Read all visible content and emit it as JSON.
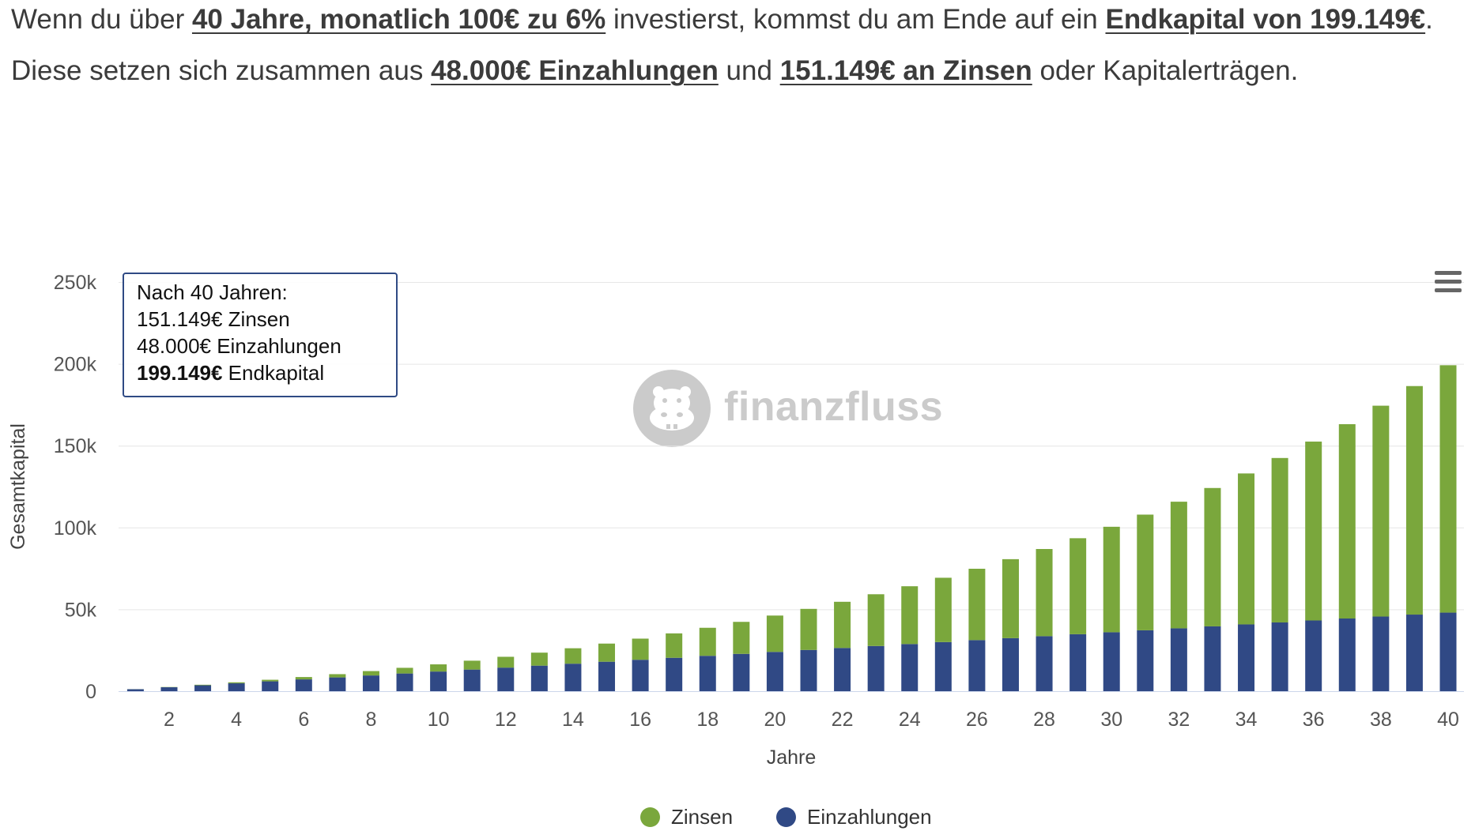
{
  "paragraph": {
    "segments": [
      "Wenn du über ",
      "40 Jahre, monatlich 100€ zu 6%",
      " investierst, kommst du am Ende auf ein ",
      "Endkapital von 199.149€",
      ". Diese setzen sich zusammen aus ",
      "48.000€ Einzahlungen",
      " und ",
      "151.149€ an Zinsen",
      " oder Kapitalerträgen."
    ]
  },
  "tooltip": {
    "line1": "Nach 40 Jahren:",
    "line2": "151.149€ Zinsen",
    "line3": "48.000€ Einzahlungen",
    "line4_bold": "199.149€",
    "line4_rest": " Endkapital"
  },
  "watermark": {
    "text": "finanzfluss",
    "icon": "hippo-logo-icon"
  },
  "menu": {
    "icon": "hamburger-menu-icon"
  },
  "legend": [
    {
      "label": "Zinsen",
      "color": "#7aa73c"
    },
    {
      "label": "Einzahlungen",
      "color": "#304985"
    }
  ],
  "chart_data": {
    "type": "bar",
    "stacked": true,
    "x": [
      1,
      2,
      3,
      4,
      5,
      6,
      7,
      8,
      9,
      10,
      11,
      12,
      13,
      14,
      15,
      16,
      17,
      18,
      19,
      20,
      21,
      22,
      23,
      24,
      25,
      26,
      27,
      28,
      29,
      30,
      31,
      32,
      33,
      34,
      35,
      36,
      37,
      38,
      39,
      40
    ],
    "series": [
      {
        "name": "Zinsen",
        "color": "#7aa73c",
        "values": [
          34,
          143,
          334,
          610,
          977,
          1441,
          2007,
          2683,
          3474,
          4388,
          5432,
          6615,
          7945,
          9431,
          11082,
          12909,
          14923,
          17135,
          19558,
          22204,
          25087,
          28223,
          31625,
          35312,
          39299,
          43607,
          48255,
          53263,
          58654,
          64452,
          70681,
          77368,
          84542,
          92232,
          100471,
          109292,
          118731,
          128826,
          139618,
          151149
        ]
      },
      {
        "name": "Einzahlungen",
        "color": "#304985",
        "values": [
          1200,
          2400,
          3600,
          4800,
          6000,
          7200,
          8400,
          9600,
          10800,
          12000,
          13200,
          14400,
          15600,
          16800,
          18000,
          19200,
          20400,
          21600,
          22800,
          24000,
          25200,
          26400,
          27600,
          28800,
          30000,
          31200,
          32400,
          33600,
          34800,
          36000,
          37200,
          38400,
          39600,
          40800,
          42000,
          43200,
          44400,
          45600,
          46800,
          48000
        ]
      }
    ],
    "xlabel": "Jahre",
    "ylabel": "Gesamtkapital",
    "ylim": [
      0,
      250000
    ],
    "yticks": [
      0,
      50000,
      100000,
      150000,
      200000,
      250000
    ],
    "ytick_labels": [
      "0",
      "50k",
      "100k",
      "150k",
      "200k",
      "250k"
    ],
    "xticks": [
      2,
      4,
      6,
      8,
      10,
      12,
      14,
      16,
      18,
      20,
      22,
      24,
      26,
      28,
      30,
      32,
      34,
      36,
      38,
      40
    ],
    "xtick_labels": [
      "2",
      "4",
      "6",
      "8",
      "10",
      "12",
      "14",
      "16",
      "18",
      "20",
      "22",
      "24",
      "26",
      "28",
      "30",
      "32",
      "34",
      "36",
      "38",
      "40"
    ],
    "grid": true,
    "legend_position": "bottom"
  }
}
